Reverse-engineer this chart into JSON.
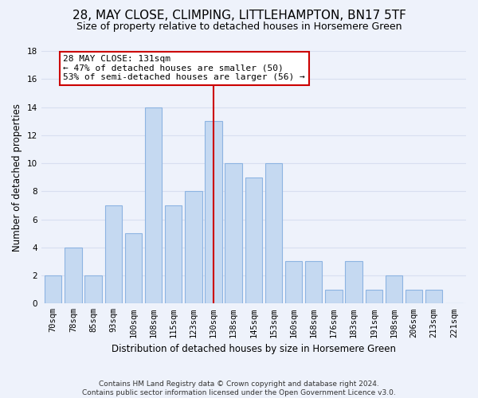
{
  "title": "28, MAY CLOSE, CLIMPING, LITTLEHAMPTON, BN17 5TF",
  "subtitle": "Size of property relative to detached houses in Horsemere Green",
  "xlabel": "Distribution of detached houses by size in Horsemere Green",
  "ylabel": "Number of detached properties",
  "bar_labels": [
    "70sqm",
    "78sqm",
    "85sqm",
    "93sqm",
    "100sqm",
    "108sqm",
    "115sqm",
    "123sqm",
    "130sqm",
    "138sqm",
    "145sqm",
    "153sqm",
    "160sqm",
    "168sqm",
    "176sqm",
    "183sqm",
    "191sqm",
    "198sqm",
    "206sqm",
    "213sqm",
    "221sqm"
  ],
  "bar_values": [
    2,
    4,
    2,
    7,
    5,
    14,
    7,
    8,
    13,
    10,
    9,
    10,
    3,
    3,
    1,
    3,
    1,
    2,
    1,
    1,
    0
  ],
  "highlight_index": 8,
  "bar_color": "#c5d9f1",
  "bar_edge_color": "#8db4e2",
  "highlight_line_color": "#cc0000",
  "annotation_line1": "28 MAY CLOSE: 131sqm",
  "annotation_line2": "← 47% of detached houses are smaller (50)",
  "annotation_line3": "53% of semi-detached houses are larger (56) →",
  "annotation_box_color": "#ffffff",
  "annotation_box_edge": "#cc0000",
  "ylim": [
    0,
    18
  ],
  "yticks": [
    0,
    2,
    4,
    6,
    8,
    10,
    12,
    14,
    16,
    18
  ],
  "footer_text": "Contains HM Land Registry data © Crown copyright and database right 2024.\nContains public sector information licensed under the Open Government Licence v3.0.",
  "background_color": "#eef2fb",
  "grid_color": "#d8dff0",
  "title_fontsize": 11,
  "subtitle_fontsize": 9,
  "xlabel_fontsize": 8.5,
  "ylabel_fontsize": 8.5,
  "tick_fontsize": 7.5,
  "footer_fontsize": 6.5,
  "ann_fontsize": 8
}
